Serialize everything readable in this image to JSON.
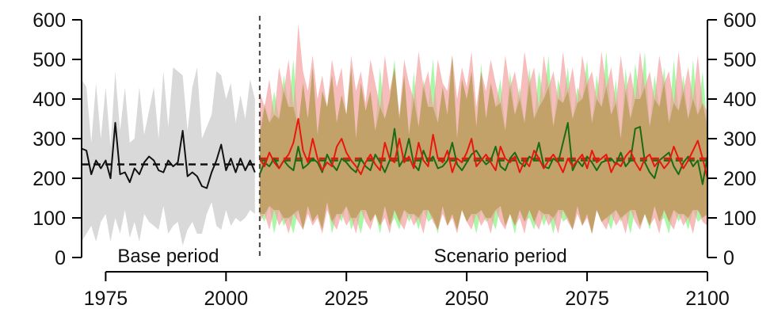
{
  "chart_data": {
    "type": "line",
    "title": "",
    "xlabel": "",
    "ylabel": "",
    "xlim": [
      1970,
      2100
    ],
    "ylim": [
      0,
      600
    ],
    "x_ticks": [
      1975,
      2000,
      2025,
      2050,
      2075,
      2100
    ],
    "y_ticks": [
      0,
      100,
      200,
      300,
      400,
      500,
      600
    ],
    "secondary_y_axis": true,
    "divider_year": 2007,
    "annotations": {
      "base_period": "Base period",
      "scenario_period": "Scenario period"
    },
    "colors": {
      "base_line": "#111111",
      "base_band": "#d9d9d9",
      "green_line": "#1a6b14",
      "green_band": "#8ef58a",
      "red_line": "#e8170e",
      "red_band": "#f29a9a",
      "overlap_band": "#c0a064"
    },
    "series": [
      {
        "key": "base",
        "x": [
          1970,
          1971,
          1972,
          1973,
          1974,
          1975,
          1976,
          1977,
          1978,
          1979,
          1980,
          1981,
          1982,
          1983,
          1984,
          1985,
          1986,
          1987,
          1988,
          1989,
          1990,
          1991,
          1992,
          1993,
          1994,
          1995,
          1996,
          1997,
          1998,
          1999,
          2000,
          2001,
          2002,
          2003,
          2004,
          2005,
          2006
        ],
        "values": [
          275,
          270,
          210,
          245,
          225,
          245,
          200,
          340,
          210,
          215,
          190,
          225,
          210,
          240,
          255,
          245,
          220,
          215,
          245,
          230,
          240,
          320,
          205,
          215,
          205,
          180,
          175,
          215,
          245,
          285,
          220,
          250,
          215,
          250,
          220,
          245,
          215
        ],
        "mean": 235,
        "upper": [
          450,
          430,
          290,
          440,
          300,
          430,
          280,
          470,
          320,
          430,
          290,
          300,
          430,
          310,
          370,
          430,
          300,
          470,
          330,
          480,
          470,
          460,
          320,
          430,
          480,
          300,
          330,
          360,
          470,
          460,
          400,
          440,
          340,
          410,
          350,
          450,
          400
        ],
        "lower": [
          40,
          60,
          80,
          40,
          90,
          110,
          40,
          100,
          60,
          120,
          50,
          90,
          40,
          110,
          90,
          80,
          70,
          130,
          60,
          80,
          90,
          30,
          70,
          90,
          60,
          60,
          110,
          140,
          80,
          70,
          120,
          80,
          100,
          90,
          100,
          120,
          110
        ]
      },
      {
        "key": "green",
        "x": [
          2007,
          2008,
          2009,
          2010,
          2011,
          2012,
          2013,
          2014,
          2015,
          2016,
          2017,
          2018,
          2019,
          2020,
          2021,
          2022,
          2023,
          2024,
          2025,
          2026,
          2027,
          2028,
          2029,
          2030,
          2031,
          2032,
          2033,
          2034,
          2035,
          2036,
          2037,
          2038,
          2039,
          2040,
          2041,
          2042,
          2043,
          2044,
          2045,
          2046,
          2047,
          2048,
          2049,
          2050,
          2051,
          2052,
          2053,
          2054,
          2055,
          2056,
          2057,
          2058,
          2059,
          2060,
          2061,
          2062,
          2063,
          2064,
          2065,
          2066,
          2067,
          2068,
          2069,
          2070,
          2071,
          2072,
          2073,
          2074,
          2075,
          2076,
          2077,
          2078,
          2079,
          2080,
          2081,
          2082,
          2083,
          2084,
          2085,
          2086,
          2087,
          2088,
          2089,
          2090,
          2091,
          2092,
          2093,
          2094,
          2095,
          2096,
          2097,
          2098,
          2099,
          2100
        ],
        "values": [
          210,
          240,
          230,
          250,
          225,
          245,
          230,
          220,
          280,
          225,
          235,
          250,
          240,
          215,
          260,
          235,
          220,
          250,
          240,
          225,
          215,
          250,
          230,
          220,
          260,
          240,
          215,
          245,
          325,
          230,
          250,
          300,
          235,
          220,
          270,
          240,
          255,
          225,
          230,
          245,
          290,
          235,
          220,
          240,
          260,
          270,
          250,
          235,
          245,
          280,
          230,
          220,
          250,
          265,
          240,
          230,
          255,
          245,
          290,
          230,
          225,
          250,
          240,
          290,
          340,
          220,
          245,
          230,
          255,
          240,
          220,
          240,
          245,
          250,
          235,
          265,
          230,
          245,
          325,
          330,
          240,
          215,
          200,
          245,
          255,
          265,
          230,
          210,
          240,
          255,
          230,
          245,
          185,
          255
        ],
        "mean": 245,
        "upper": [
          310,
          390,
          340,
          420,
          350,
          460,
          380,
          500,
          330,
          440,
          350,
          480,
          310,
          420,
          380,
          460,
          340,
          410,
          360,
          480,
          300,
          440,
          370,
          420,
          320,
          480,
          350,
          400,
          500,
          350,
          460,
          310,
          470,
          330,
          450,
          380,
          500,
          340,
          430,
          360,
          510,
          300,
          450,
          400,
          470,
          330,
          490,
          350,
          440,
          380,
          450,
          320,
          470,
          360,
          430,
          340,
          480,
          350,
          470,
          400,
          510,
          330,
          450,
          390,
          480,
          350,
          430,
          400,
          500,
          340,
          460,
          380,
          520,
          360,
          450,
          300,
          480,
          350,
          490,
          400,
          520,
          330,
          460,
          380,
          480,
          340,
          500,
          370,
          460,
          350,
          500,
          360,
          470,
          330
        ],
        "lower": [
          110,
          90,
          130,
          60,
          120,
          80,
          100,
          60,
          120,
          70,
          130,
          90,
          110,
          70,
          140,
          60,
          110,
          90,
          130,
          70,
          100,
          60,
          120,
          90,
          110,
          60,
          130,
          80,
          100,
          70,
          120,
          90,
          110,
          70,
          120,
          90,
          100,
          60,
          130,
          80,
          110,
          70,
          120,
          90,
          110,
          60,
          120,
          90,
          100,
          70,
          130,
          80,
          110,
          60,
          120,
          90,
          100,
          70,
          120,
          80,
          110,
          60,
          120,
          90,
          100,
          70,
          130,
          80,
          110,
          60,
          120,
          90,
          100,
          70,
          120,
          90,
          110,
          60,
          120,
          80,
          110,
          70,
          130,
          90,
          100,
          60,
          120,
          90,
          110,
          70,
          120,
          90,
          100,
          110
        ]
      },
      {
        "key": "red",
        "x": [
          2007,
          2008,
          2009,
          2010,
          2011,
          2012,
          2013,
          2014,
          2015,
          2016,
          2017,
          2018,
          2019,
          2020,
          2021,
          2022,
          2023,
          2024,
          2025,
          2026,
          2027,
          2028,
          2029,
          2030,
          2031,
          2032,
          2033,
          2034,
          2035,
          2036,
          2037,
          2038,
          2039,
          2040,
          2041,
          2042,
          2043,
          2044,
          2045,
          2046,
          2047,
          2048,
          2049,
          2050,
          2051,
          2052,
          2053,
          2054,
          2055,
          2056,
          2057,
          2058,
          2059,
          2060,
          2061,
          2062,
          2063,
          2064,
          2065,
          2066,
          2067,
          2068,
          2069,
          2070,
          2071,
          2072,
          2073,
          2074,
          2075,
          2076,
          2077,
          2078,
          2079,
          2080,
          2081,
          2082,
          2083,
          2084,
          2085,
          2086,
          2087,
          2088,
          2089,
          2090,
          2091,
          2092,
          2093,
          2094,
          2095,
          2096,
          2097,
          2098,
          2099,
          2100
        ],
        "values": [
          250,
          230,
          265,
          240,
          225,
          245,
          260,
          290,
          350,
          270,
          240,
          300,
          250,
          220,
          240,
          230,
          280,
          300,
          265,
          245,
          230,
          210,
          240,
          260,
          235,
          220,
          290,
          250,
          240,
          300,
          240,
          255,
          225,
          290,
          245,
          230,
          310,
          250,
          240,
          270,
          215,
          250,
          240,
          265,
          300,
          230,
          245,
          260,
          240,
          220,
          280,
          250,
          240,
          255,
          215,
          245,
          230,
          270,
          250,
          225,
          245,
          260,
          240,
          215,
          250,
          230,
          245,
          260,
          225,
          270,
          240,
          250,
          260,
          215,
          240,
          230,
          255,
          270,
          240,
          220,
          250,
          260,
          230,
          245,
          225,
          240,
          280,
          250,
          225,
          245,
          270,
          295,
          250,
          200
        ],
        "mean": 250,
        "upper": [
          420,
          380,
          450,
          360,
          480,
          420,
          500,
          380,
          590,
          470,
          420,
          510,
          400,
          460,
          380,
          500,
          430,
          480,
          360,
          510,
          420,
          470,
          390,
          500,
          440,
          380,
          510,
          420,
          480,
          360,
          500,
          440,
          400,
          520,
          430,
          470,
          380,
          500,
          440,
          420,
          510,
          400,
          480,
          430,
          520,
          380,
          470,
          420,
          500,
          440,
          390,
          510,
          430,
          470,
          400,
          520,
          440,
          480,
          380,
          510,
          430,
          470,
          400,
          520,
          420,
          480,
          390,
          510,
          440,
          470,
          400,
          520,
          430,
          480,
          390,
          510,
          420,
          470,
          400,
          520,
          430,
          470,
          400,
          510,
          440,
          470,
          390,
          520,
          420,
          480,
          400,
          510,
          390,
          370
        ],
        "lower": [
          90,
          110,
          70,
          120,
          80,
          100,
          60,
          110,
          90,
          70,
          110,
          80,
          100,
          60,
          120,
          90,
          70,
          110,
          80,
          100,
          60,
          120,
          90,
          70,
          110,
          80,
          100,
          60,
          120,
          90,
          70,
          110,
          80,
          100,
          60,
          120,
          90,
          70,
          110,
          80,
          100,
          60,
          120,
          90,
          70,
          110,
          80,
          100,
          60,
          120,
          90,
          70,
          110,
          80,
          100,
          60,
          120,
          90,
          70,
          110,
          80,
          100,
          60,
          120,
          90,
          70,
          110,
          80,
          100,
          60,
          120,
          90,
          70,
          110,
          80,
          100,
          60,
          120,
          90,
          70,
          110,
          80,
          100,
          60,
          120,
          90,
          70,
          110,
          80,
          100,
          60,
          120,
          90,
          80
        ]
      }
    ]
  }
}
